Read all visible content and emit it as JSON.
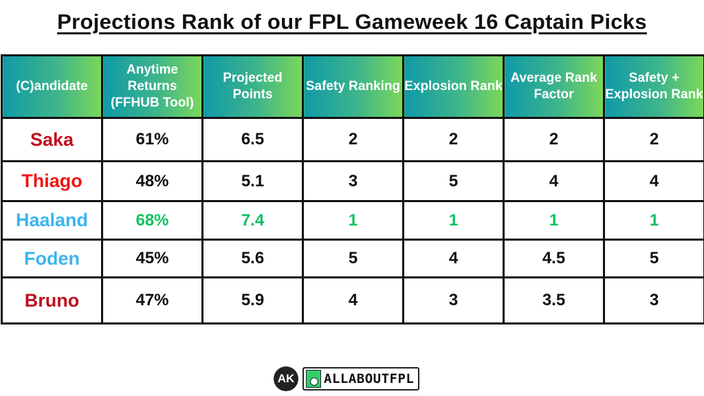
{
  "title": "Projections Rank of our FPL Gameweek 16 Captain Picks",
  "colors": {
    "header_gradient_start": "#0f9aa8",
    "header_gradient_end": "#7cd75a",
    "dark_red": "#c0101e",
    "red": "#f01414",
    "light_blue": "#3cb4f0",
    "best_green": "#13c060"
  },
  "table": {
    "headers": [
      "(C)andidate",
      "Anytime Returns (FFHUB Tool)",
      "Projected Points",
      "Safety Ranking",
      "Explosion Rank",
      "Average Rank Factor",
      "Safety + Explosion Rank"
    ],
    "rows": [
      {
        "name": "Saka",
        "name_color": "#c0101e",
        "anytime": "61%",
        "projected": "6.5",
        "safety": "2",
        "explosion": "2",
        "avg": "2",
        "combined": "2",
        "value_color": "#111111"
      },
      {
        "name": "Thiago",
        "name_color": "#f01414",
        "anytime": "48%",
        "projected": "5.1",
        "safety": "3",
        "explosion": "5",
        "avg": "4",
        "combined": "4",
        "value_color": "#111111"
      },
      {
        "name": "Haaland",
        "name_color": "#3cb4f0",
        "anytime": "68%",
        "projected": "7.4",
        "safety": "1",
        "explosion": "1",
        "avg": "1",
        "combined": "1",
        "value_color": "#13c060"
      },
      {
        "name": "Foden",
        "name_color": "#3cb4f0",
        "anytime": "45%",
        "projected": "5.6",
        "safety": "5",
        "explosion": "4",
        "avg": "4.5",
        "combined": "5",
        "value_color": "#111111"
      },
      {
        "name": "Bruno",
        "name_color": "#c0101e",
        "anytime": "47%",
        "projected": "5.9",
        "safety": "4",
        "explosion": "3",
        "avg": "3.5",
        "combined": "3",
        "value_color": "#111111"
      }
    ]
  },
  "footer": {
    "monogram": "AK",
    "brand": "ALLABOUTFPL"
  },
  "chart_data": {
    "type": "table",
    "title": "Projections Rank of our FPL Gameweek 16 Captain Picks",
    "columns": [
      "(C)andidate",
      "Anytime Returns (FFHUB Tool)",
      "Projected Points",
      "Safety Ranking",
      "Explosion Rank",
      "Average Rank Factor",
      "Safety + Explosion Rank"
    ],
    "rows": [
      [
        "Saka",
        "61%",
        6.5,
        2,
        2,
        2,
        2
      ],
      [
        "Thiago",
        "48%",
        5.1,
        3,
        5,
        4,
        4
      ],
      [
        "Haaland",
        "68%",
        7.4,
        1,
        1,
        1,
        1
      ],
      [
        "Foden",
        "45%",
        5.6,
        5,
        4,
        4.5,
        5
      ],
      [
        "Bruno",
        "47%",
        5.9,
        4,
        3,
        3.5,
        3
      ]
    ],
    "highlight": {
      "row": "Haaland",
      "color": "#13c060"
    }
  }
}
